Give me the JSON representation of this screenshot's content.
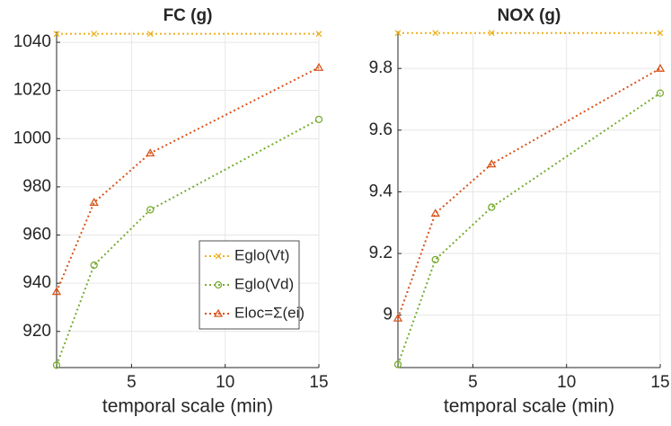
{
  "chart_data": [
    {
      "type": "line",
      "title": "FC (g)",
      "x_label": "temporal scale (min)",
      "x": [
        1,
        3,
        6,
        15
      ],
      "xlim": [
        1,
        15
      ],
      "xticks": [
        5,
        10,
        15
      ],
      "ylim": [
        905,
        1044.5
      ],
      "yticks": [
        920,
        940,
        960,
        980,
        1000,
        1020,
        1040
      ],
      "grid": true,
      "legend": "lower right",
      "series": [
        {
          "name": "Eglo(Vt)",
          "color": "#EDB120",
          "marker": "x",
          "values": [
            1043.5,
            1043.5,
            1043.5,
            1043.5
          ]
        },
        {
          "name": "Eglo(Vd)",
          "color": "#77AC30",
          "marker": "o",
          "values": [
            906,
            947.5,
            970.5,
            1008
          ]
        },
        {
          "name": "Eloc=Σ(ei)",
          "color": "#D95319",
          "marker": "^",
          "values": [
            936.5,
            973.5,
            994,
            1029.5
          ]
        }
      ]
    },
    {
      "type": "line",
      "title": "NOX (g)",
      "x_label": "temporal scale (min)",
      "x": [
        1,
        3,
        6,
        15
      ],
      "xlim": [
        1,
        15
      ],
      "xticks": [
        5,
        10,
        15
      ],
      "ylim": [
        8.83,
        9.92
      ],
      "yticks": [
        9,
        9.2,
        9.4,
        9.6,
        9.8
      ],
      "grid": true,
      "series": [
        {
          "color": "#EDB120",
          "marker": "x",
          "values": [
            9.915,
            9.915,
            9.915,
            9.915
          ]
        },
        {
          "color": "#77AC30",
          "marker": "o",
          "values": [
            8.84,
            9.18,
            9.35,
            9.72
          ]
        },
        {
          "color": "#D95319",
          "marker": "^",
          "values": [
            8.99,
            9.33,
            9.49,
            9.8
          ]
        }
      ]
    }
  ]
}
